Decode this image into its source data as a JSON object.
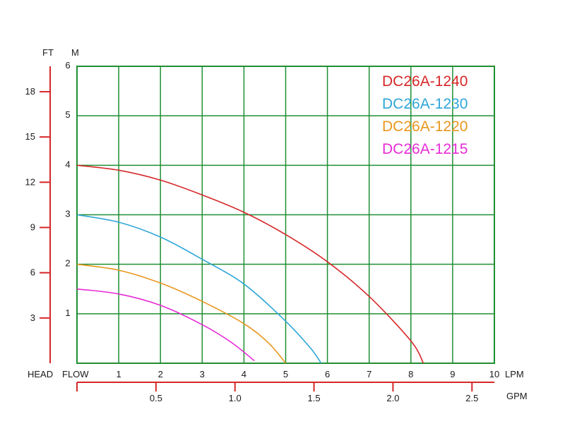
{
  "chart_data": {
    "type": "line",
    "title": "",
    "xlabel": "FLOW",
    "ylabel": "HEAD",
    "x_unit": "LPM",
    "y_unit": "M",
    "xlim": [
      0,
      10
    ],
    "ylim": [
      0,
      6
    ],
    "x_ticks": [
      "1",
      "2",
      "3",
      "4",
      "5",
      "6",
      "7",
      "8",
      "9",
      "10"
    ],
    "y_ticks": [
      "1",
      "2",
      "3",
      "4",
      "5",
      "6"
    ],
    "secondary_x": {
      "unit": "GPM",
      "ticks": [
        "0.5",
        "1.0",
        "1.5",
        "2.0",
        "2.5"
      ],
      "values": [
        0.5,
        1.0,
        1.5,
        2.0,
        2.5
      ]
    },
    "secondary_y": {
      "unit": "FT",
      "ticks": [
        "3",
        "6",
        "9",
        "12",
        "15",
        "18"
      ],
      "values": [
        3,
        6,
        9,
        12,
        15,
        18
      ]
    },
    "grid": true,
    "legend_position": "top-right",
    "series": [
      {
        "name": "DC26A-1240",
        "color": "#d62728",
        "x": [
          0,
          1,
          2,
          3,
          4,
          5,
          6,
          7,
          8,
          8.3
        ],
        "y": [
          4.0,
          3.9,
          3.7,
          3.4,
          3.05,
          2.6,
          2.05,
          1.35,
          0.45,
          0.0
        ]
      },
      {
        "name": "DC26A-1230",
        "color": "#2ea6d8",
        "x": [
          0,
          1,
          2,
          3,
          4,
          5,
          5.6,
          5.85
        ],
        "y": [
          3.0,
          2.85,
          2.55,
          2.1,
          1.6,
          0.85,
          0.3,
          0.0
        ]
      },
      {
        "name": "DC26A-1220",
        "color": "#e8961e",
        "x": [
          0,
          1,
          2,
          3,
          4,
          4.6,
          5.0
        ],
        "y": [
          2.0,
          1.88,
          1.62,
          1.25,
          0.8,
          0.4,
          0.0
        ]
      },
      {
        "name": "DC26A-1215",
        "color": "#e62bd6",
        "x": [
          0,
          1,
          2,
          3,
          3.7,
          4.25
        ],
        "y": [
          1.5,
          1.4,
          1.17,
          0.78,
          0.42,
          0.05
        ]
      }
    ]
  },
  "colors": {
    "grid": "#1f8f33",
    "axis": "#d62728"
  }
}
